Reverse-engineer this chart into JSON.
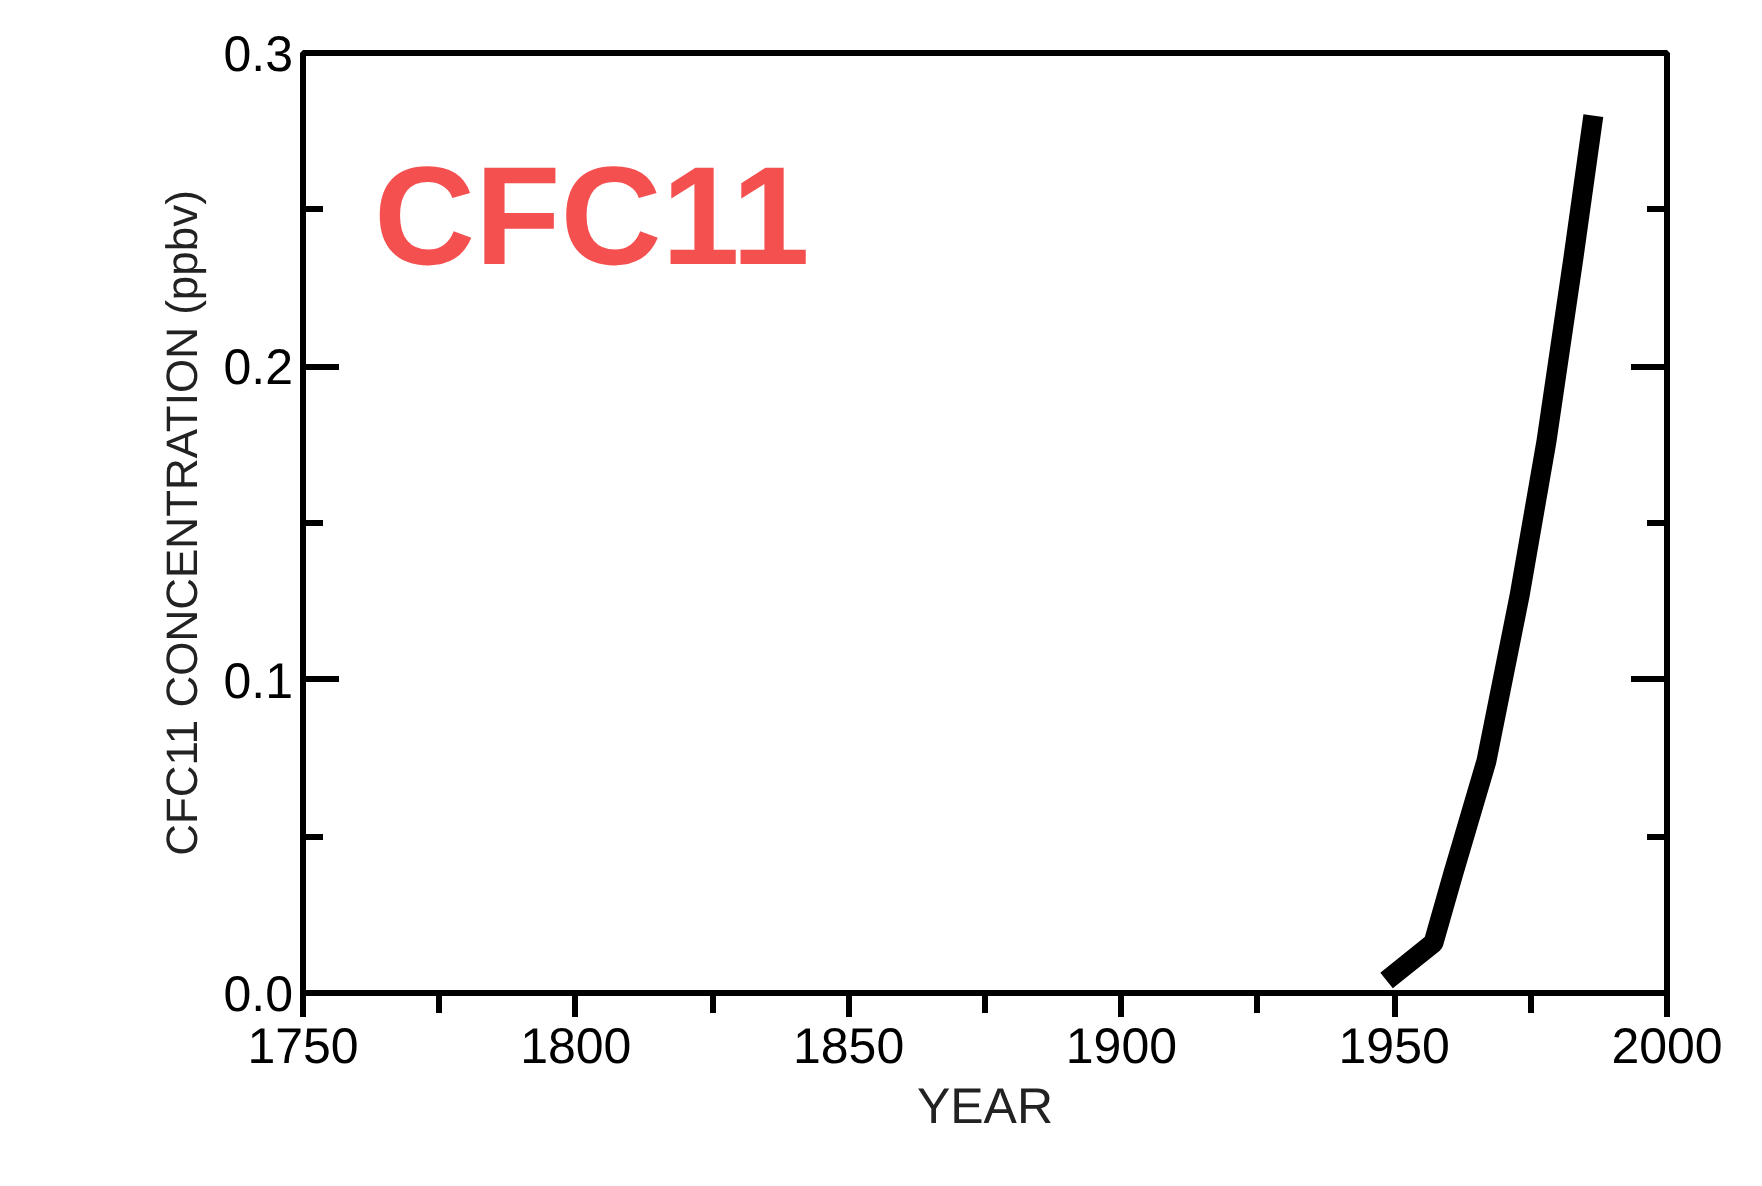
{
  "chart_data": {
    "type": "line",
    "title": "CFC11",
    "xlabel": "YEAR",
    "ylabel": "CFC11 CONCENTRATION (ppbv)",
    "x": [
      1948.6,
      1957.2,
      1960.8,
      1966.9,
      1973.0,
      1977.9,
      1982.8,
      1986.5
    ],
    "series": [
      {
        "color": "#000000",
        "values": [
          0.004,
          0.016,
          0.038,
          0.074,
          0.127,
          0.176,
          0.234,
          0.28
        ]
      }
    ],
    "xlim": [
      1750,
      2000
    ],
    "xticks": [
      1750,
      {
        "value": 1775,
        "label": null
      },
      1800,
      {
        "value": 1825,
        "label": null
      },
      1850,
      {
        "value": 1875,
        "label": null
      },
      1900,
      {
        "value": 1925,
        "label": null
      },
      1950,
      {
        "value": 1975,
        "label": null
      },
      2000
    ],
    "ylim": [
      0,
      0.3
    ],
    "yticks": [
      {
        "value": 0,
        "label": "0.0"
      },
      {
        "value": 0.05,
        "label": null
      },
      0.1,
      {
        "value": 0.15,
        "label": null
      },
      0.2,
      {
        "value": 0.25,
        "label": null
      },
      0.3
    ],
    "grid": false,
    "marker": "none",
    "line_style": "solid"
  }
}
